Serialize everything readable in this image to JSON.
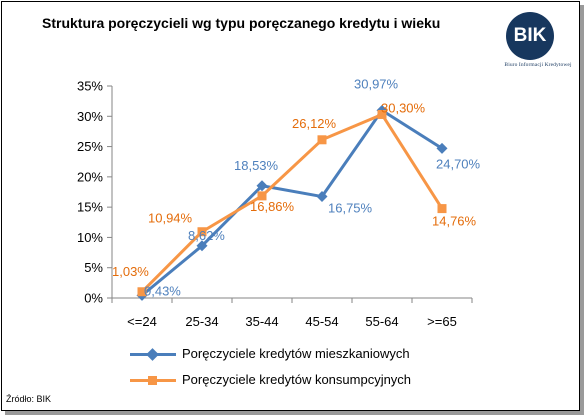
{
  "title": "Struktura poręczycieli wg typu poręczanego kredytu i wieku",
  "logo": {
    "text": "BIK",
    "subtitle": "Biuro Informacji Kredytowej"
  },
  "source": "Źródło: BIK",
  "colors": {
    "series1": "#4a7ebb",
    "series2": "#f79646",
    "label1": "#4f81bd",
    "label2": "#e46c0a"
  },
  "chart_data": {
    "type": "line",
    "categories": [
      "<=24",
      "25-34",
      "35-44",
      "45-54",
      "55-64",
      ">=65"
    ],
    "ylim": [
      0,
      35
    ],
    "yticks": [
      "0%",
      "5%",
      "10%",
      "15%",
      "20%",
      "25%",
      "30%",
      "35%"
    ],
    "grid": false,
    "legend": "bottom",
    "series": [
      {
        "name": "Poręczyciele kredytów mieszkaniowych",
        "marker": "diamond",
        "values": [
          0.43,
          8.62,
          18.53,
          16.75,
          30.97,
          24.7
        ],
        "labels": [
          "0,43%",
          "8,62%",
          "18,53%",
          "16,75%",
          "30,97%",
          "24,70%"
        ]
      },
      {
        "name": "Poręczyciele kredytów konsumpcyjnych",
        "marker": "square",
        "values": [
          1.03,
          10.94,
          16.86,
          26.12,
          30.3,
          14.76
        ],
        "labels": [
          "1,03%",
          "10,94%",
          "16,86%",
          "26,12%",
          "30,30%",
          "14,76%"
        ]
      }
    ]
  }
}
